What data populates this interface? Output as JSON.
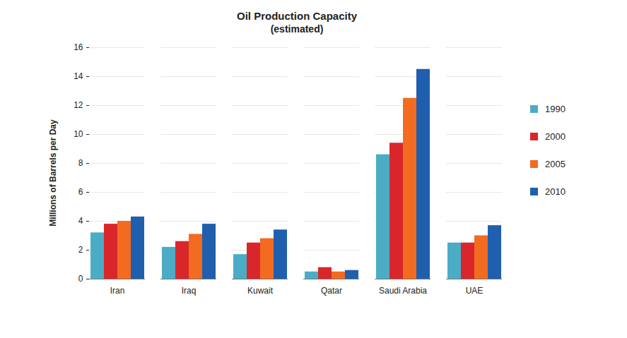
{
  "chart_data": {
    "type": "bar",
    "title": "Oil Production Capacity",
    "subtitle": "(estimated)",
    "y_label": "Millions of Barrels per Day",
    "categories": [
      "Iran",
      "Iraq",
      "Kuwait",
      "Qatar",
      "Saudi Arabia",
      "UAE"
    ],
    "series": [
      {
        "name": "1990",
        "color": "#4bacc6",
        "values": [
          3.2,
          2.2,
          1.7,
          0.5,
          8.6,
          2.5
        ]
      },
      {
        "name": "2000",
        "color": "#d9262b",
        "values": [
          3.8,
          2.6,
          2.5,
          0.8,
          9.4,
          2.5
        ]
      },
      {
        "name": "2005",
        "color": "#f26b21",
        "values": [
          4.0,
          3.1,
          2.8,
          0.5,
          12.5,
          3.0
        ]
      },
      {
        "name": "2010",
        "color": "#1f5fae",
        "values": [
          4.3,
          3.8,
          3.4,
          0.6,
          14.5,
          3.7
        ]
      }
    ],
    "ylim": [
      0,
      16
    ],
    "yticks": [
      0,
      2,
      4,
      6,
      8,
      10,
      12,
      14,
      16
    ],
    "grid": true,
    "legend": "right"
  }
}
